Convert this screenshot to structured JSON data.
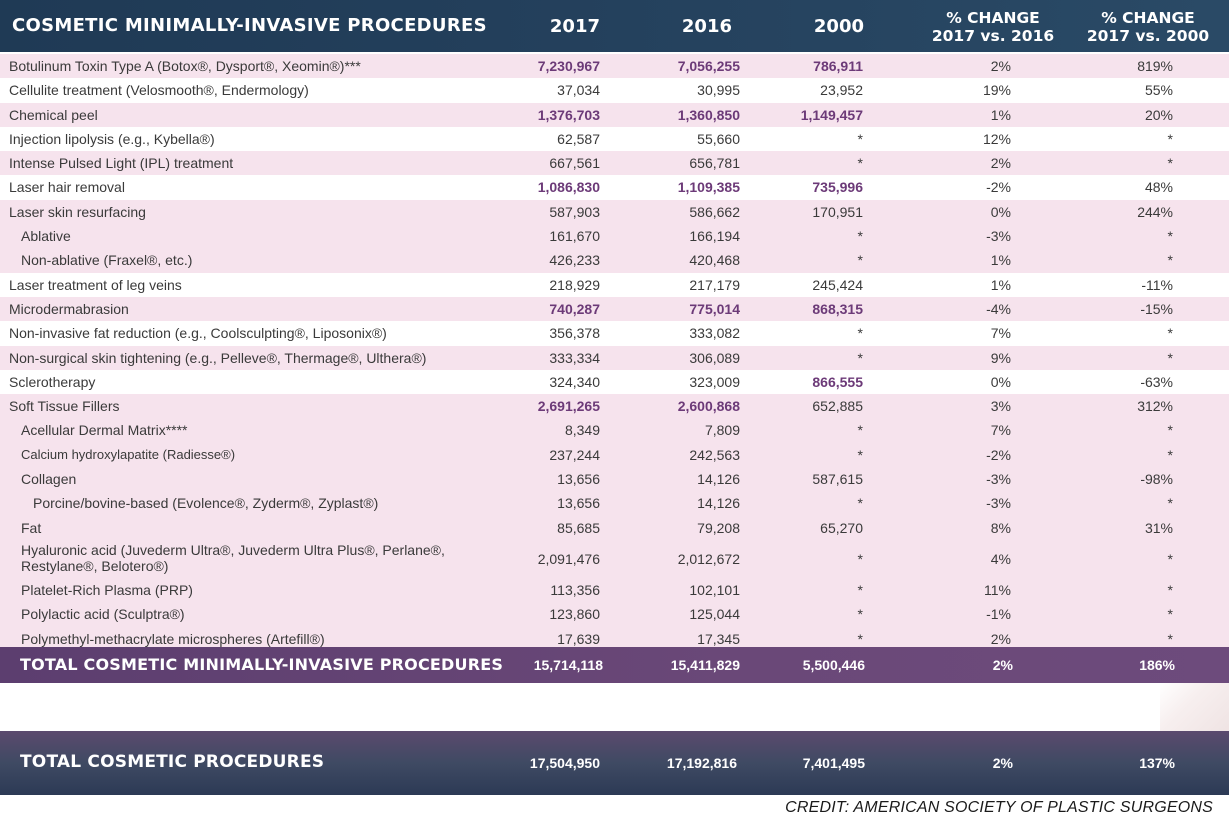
{
  "header": {
    "title": "COSMETIC MINIMALLY-INVASIVE PROCEDURES",
    "y2017": "2017",
    "y2016": "2016",
    "y2000": "2000",
    "pct1_line1": "% CHANGE",
    "pct1_line2": "2017 vs. 2016",
    "pct2_line1": "% CHANGE",
    "pct2_line2": "2017 vs. 2000"
  },
  "rows": [
    {
      "label": "Botulinum Toxin Type A (Botox®, Dysport®, Xeomin®)***",
      "v2017": "7,230,967",
      "v2016": "7,056,255",
      "v2000": "786,911",
      "p1": "2%",
      "p2": "819%"
    },
    {
      "label": "Cellulite treatment (Velosmooth®, Endermology)",
      "v2017": "37,034",
      "v2016": "30,995",
      "v2000": "23,952",
      "p1": "19%",
      "p2": "55%"
    },
    {
      "label": "Chemical peel",
      "v2017": "1,376,703",
      "v2016": "1,360,850",
      "v2000": "1,149,457",
      "p1": "1%",
      "p2": "20%"
    },
    {
      "label": "Injection lipolysis (e.g., Kybella®)",
      "v2017": "62,587",
      "v2016": "55,660",
      "v2000": "*",
      "p1": "12%",
      "p2": "*"
    },
    {
      "label": "Intense Pulsed Light (IPL) treatment",
      "v2017": "667,561",
      "v2016": "656,781",
      "v2000": "*",
      "p1": "2%",
      "p2": "*"
    },
    {
      "label": "Laser hair removal",
      "v2017": "1,086,830",
      "v2016": "1,109,385",
      "v2000": "735,996",
      "p1": "-2%",
      "p2": "48%"
    },
    {
      "label": "Laser skin resurfacing",
      "v2017": "587,903",
      "v2016": "586,662",
      "v2000": "170,951",
      "p1": "0%",
      "p2": "244%"
    },
    {
      "label": "Ablative",
      "v2017": "161,670",
      "v2016": "166,194",
      "v2000": "*",
      "p1": "-3%",
      "p2": "*"
    },
    {
      "label": "Non-ablative (Fraxel®, etc.)",
      "v2017": "426,233",
      "v2016": "420,468",
      "v2000": "*",
      "p1": "1%",
      "p2": "*"
    },
    {
      "label": "Laser treatment of leg veins",
      "v2017": "218,929",
      "v2016": "217,179",
      "v2000": "245,424",
      "p1": "1%",
      "p2": "-11%"
    },
    {
      "label": "Microdermabrasion",
      "v2017": "740,287",
      "v2016": "775,014",
      "v2000": "868,315",
      "p1": "-4%",
      "p2": "-15%"
    },
    {
      "label": "Non-invasive fat reduction (e.g., Coolsculpting®, Liposonix®)",
      "v2017": "356,378",
      "v2016": "333,082",
      "v2000": "*",
      "p1": "7%",
      "p2": "*"
    },
    {
      "label": "Non-surgical skin tightening (e.g., Pelleve®, Thermage®, Ulthera®)",
      "v2017": "333,334",
      "v2016": "306,089",
      "v2000": "*",
      "p1": "9%",
      "p2": "*"
    },
    {
      "label": "Sclerotherapy",
      "v2017": "324,340",
      "v2016": "323,009",
      "v2000": "866,555",
      "p1": "0%",
      "p2": "-63%"
    },
    {
      "label": "Soft Tissue Fillers",
      "v2017": "2,691,265",
      "v2016": "2,600,868",
      "v2000": "652,885",
      "p1": "3%",
      "p2": "312%"
    },
    {
      "label": "Acellular Dermal Matrix****",
      "v2017": "8,349",
      "v2016": "7,809",
      "v2000": "*",
      "p1": "7%",
      "p2": "*"
    },
    {
      "label": "Calcium hydroxylapatite (Radiesse®)",
      "v2017": "237,244",
      "v2016": "242,563",
      "v2000": "*",
      "p1": "-2%",
      "p2": "*"
    },
    {
      "label": "Collagen",
      "v2017": "13,656",
      "v2016": "14,126",
      "v2000": "587,615",
      "p1": "-3%",
      "p2": "-98%"
    },
    {
      "label": "Porcine/bovine-based (Evolence®, Zyderm®, Zyplast®)",
      "v2017": "13,656",
      "v2016": "14,126",
      "v2000": "*",
      "p1": "-3%",
      "p2": "*"
    },
    {
      "label": "Fat",
      "v2017": "85,685",
      "v2016": "79,208",
      "v2000": "65,270",
      "p1": "8%",
      "p2": "31%"
    },
    {
      "label": "Hyaluronic acid (Juvederm Ultra®, Juvederm Ultra Plus®, Perlane®, Restylane®, Belotero®)",
      "v2017": "2,091,476",
      "v2016": "2,012,672",
      "v2000": "*",
      "p1": "4%",
      "p2": "*"
    },
    {
      "label": "Platelet-Rich Plasma (PRP)",
      "v2017": "113,356",
      "v2016": "102,101",
      "v2000": "*",
      "p1": "11%",
      "p2": "*"
    },
    {
      "label": "Polylactic acid (Sculptra®)",
      "v2017": "123,860",
      "v2016": "125,044",
      "v2000": "*",
      "p1": "-1%",
      "p2": "*"
    },
    {
      "label": "Polymethyl-methacrylate microspheres (Artefill®)",
      "v2017": "17,639",
      "v2016": "17,345",
      "v2000": "*",
      "p1": "2%",
      "p2": "*"
    }
  ],
  "total_minimally_invasive": {
    "label": "TOTAL COSMETIC MINIMALLY-INVASIVE PROCEDURES",
    "v2017": "15,714,118",
    "v2016": "15,411,829",
    "v2000": "5,500,446",
    "p1": "2%",
    "p2": "186%"
  },
  "total_cosmetic": {
    "label": "TOTAL COSMETIC PROCEDURES",
    "v2017": "17,504,950",
    "v2016": "17,192,816",
    "v2000": "7,401,495",
    "p1": "2%",
    "p2": "137%"
  },
  "credit": "CREDIT: AMERICAN SOCIETY OF PLASTIC SURGEONS",
  "colors": {
    "header_bg": "#233f5b",
    "row_pink": "#f6e3ed",
    "highlight_text": "#6c3a78",
    "total_purple": "#6a4878",
    "total_navy": "#2c3a55"
  }
}
